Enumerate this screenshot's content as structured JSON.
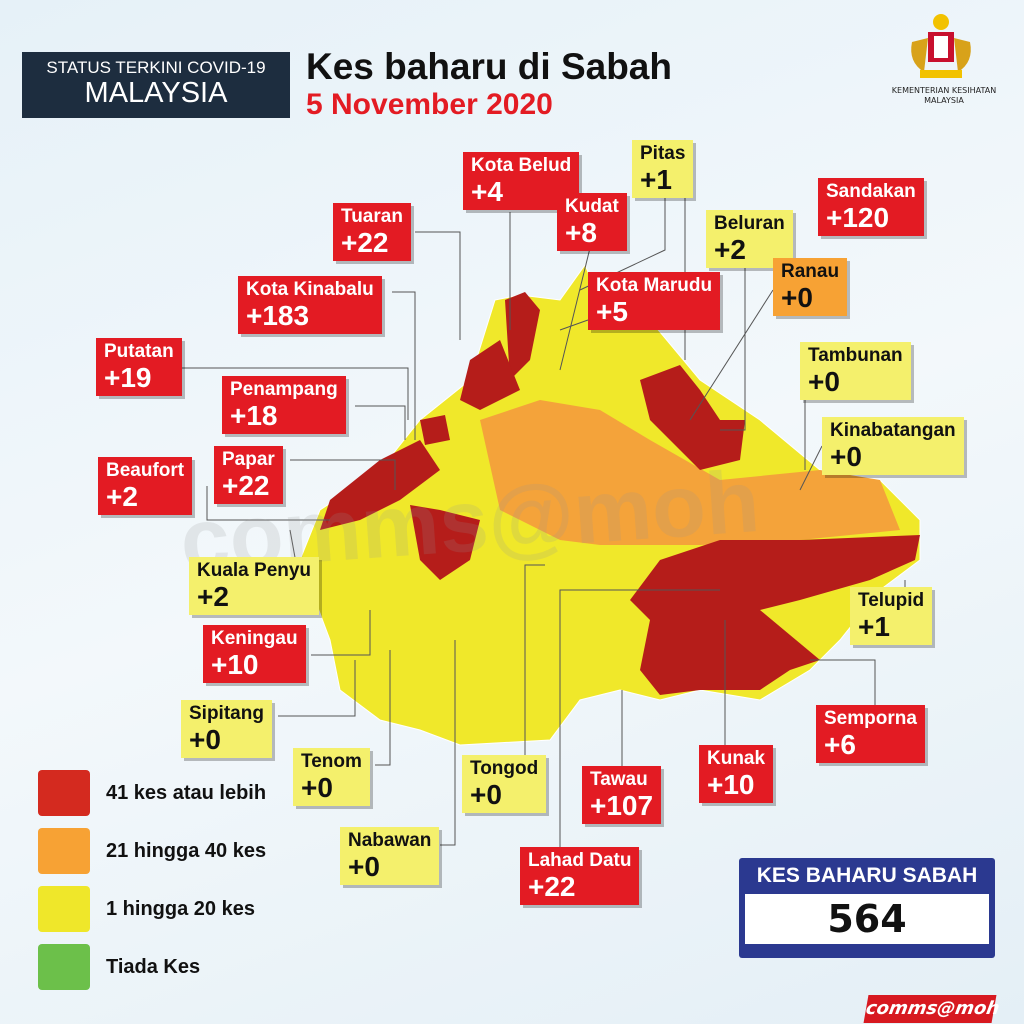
{
  "header": {
    "status_line1": "STATUS TERKINI COVID-19",
    "status_line2": "MALAYSIA",
    "title": "Kes baharu di Sabah",
    "date": "5 November 2020",
    "ministry": "KEMENTERIAN KESIHATAN MALAYSIA"
  },
  "colors": {
    "red": "#e31b23",
    "orange": "#f7a234",
    "yellow": "#f4f06c",
    "green": "#6cc04a",
    "navy": "#2b3990"
  },
  "districts": [
    {
      "name": "Kota Belud",
      "value": "+4",
      "level": "red"
    },
    {
      "name": "Pitas",
      "value": "+1",
      "level": "yellow"
    },
    {
      "name": "Kudat",
      "value": "+8",
      "level": "red"
    },
    {
      "name": "Tuaran",
      "value": "+22",
      "level": "red"
    },
    {
      "name": "Beluran",
      "value": "+2",
      "level": "yellow"
    },
    {
      "name": "Sandakan",
      "value": "+120",
      "level": "red"
    },
    {
      "name": "Kota Kinabalu",
      "value": "+183",
      "level": "red"
    },
    {
      "name": "Kota Marudu",
      "value": "+5",
      "level": "red"
    },
    {
      "name": "Ranau",
      "value": "+0",
      "level": "orange"
    },
    {
      "name": "Putatan",
      "value": "+19",
      "level": "red"
    },
    {
      "name": "Tambunan",
      "value": "+0",
      "level": "yellow"
    },
    {
      "name": "Penampang",
      "value": "+18",
      "level": "red"
    },
    {
      "name": "Kinabatangan",
      "value": "+0",
      "level": "yellow"
    },
    {
      "name": "Papar",
      "value": "+22",
      "level": "red"
    },
    {
      "name": "Beaufort",
      "value": "+2",
      "level": "red"
    },
    {
      "name": "Kuala Penyu",
      "value": "+2",
      "level": "yellow"
    },
    {
      "name": "Telupid",
      "value": "+1",
      "level": "yellow"
    },
    {
      "name": "Keningau",
      "value": "+10",
      "level": "red"
    },
    {
      "name": "Sipitang",
      "value": "+0",
      "level": "yellow"
    },
    {
      "name": "Semporna",
      "value": "+6",
      "level": "red"
    },
    {
      "name": "Tenom",
      "value": "+0",
      "level": "yellow"
    },
    {
      "name": "Tongod",
      "value": "+0",
      "level": "yellow"
    },
    {
      "name": "Tawau",
      "value": "+107",
      "level": "red"
    },
    {
      "name": "Kunak",
      "value": "+10",
      "level": "red"
    },
    {
      "name": "Nabawan",
      "value": "+0",
      "level": "yellow"
    },
    {
      "name": "Lahad Datu",
      "value": "+22",
      "level": "red"
    }
  ],
  "legend": [
    {
      "label": "41 kes atau lebih",
      "color": "#d42a1f"
    },
    {
      "label": "21 hingga 40 kes",
      "color": "#f7a234"
    },
    {
      "label": "1 hingga 20 kes",
      "color": "#efe72a"
    },
    {
      "label": "Tiada Kes",
      "color": "#6cc04a"
    }
  ],
  "total": {
    "label": "KES BAHARU SABAH",
    "value": "564"
  },
  "footer_tag": "comms@moh",
  "watermark": "comms@moh"
}
